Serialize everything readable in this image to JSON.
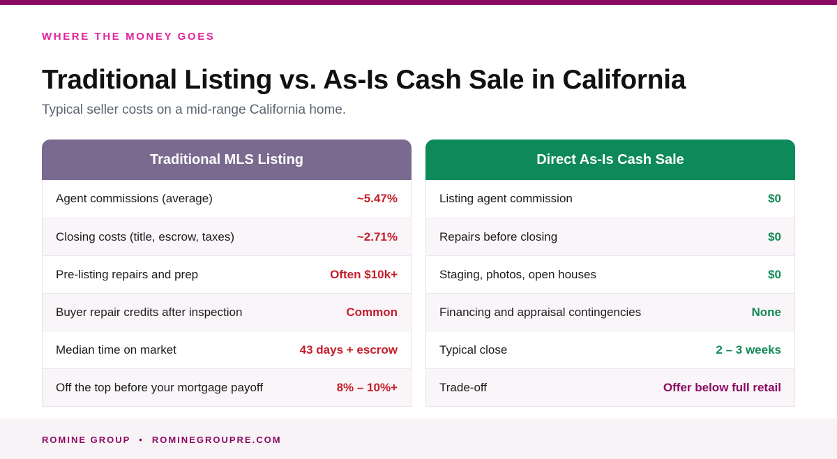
{
  "colors": {
    "accent": "#8b0a62",
    "eyebrow": "#e0249a",
    "left_header_bg": "#7a6a8f",
    "right_header_bg": "#0e8a5a",
    "negative_value": "#c41e2a",
    "positive_value": "#138a56",
    "tradeoff_value": "#8b0a62"
  },
  "eyebrow": "WHERE THE MONEY GOES",
  "headline": "Traditional Listing vs. As-Is Cash Sale in California",
  "subhead": "Typical seller costs on a mid-range California home.",
  "comparison": {
    "traditional": {
      "title": "Traditional MLS Listing",
      "rows": [
        {
          "label": "Agent commissions (average)",
          "value": "~5.47%"
        },
        {
          "label": "Closing costs (title, escrow, taxes)",
          "value": "~2.71%"
        },
        {
          "label": "Pre-listing repairs and prep",
          "value": "Often $10k+"
        },
        {
          "label": "Buyer repair credits after inspection",
          "value": "Common"
        },
        {
          "label": "Median time on market",
          "value": "43 days + escrow"
        },
        {
          "label": "Off the top before your mortgage payoff",
          "value": "8% – 10%+"
        }
      ]
    },
    "cash_sale": {
      "title": "Direct As-Is Cash Sale",
      "rows": [
        {
          "label": "Listing agent commission",
          "value": "$0"
        },
        {
          "label": "Repairs before closing",
          "value": "$0"
        },
        {
          "label": "Staging, photos, open houses",
          "value": "$0"
        },
        {
          "label": "Financing and appraisal contingencies",
          "value": "None"
        },
        {
          "label": "Typical close",
          "value": "2 – 3 weeks"
        },
        {
          "label": "Trade-off",
          "value": "Offer below full retail"
        }
      ]
    }
  },
  "footer": {
    "brand": "ROMINE GROUP",
    "separator": "•",
    "website": "ROMINEGROUPRE.COM"
  }
}
